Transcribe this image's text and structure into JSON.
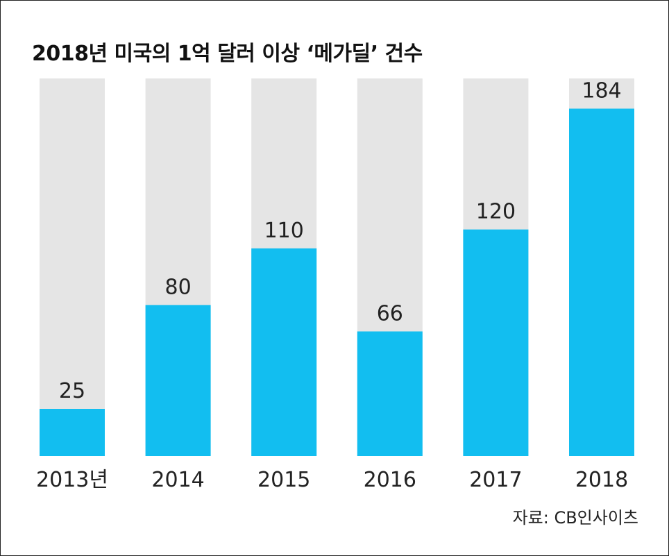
{
  "title": "2018년 미국의 1억 달러 이상 ‘메가딜’ 건수",
  "source": "자료: CB인사이츠",
  "colors": {
    "bar": "#12BEF0",
    "track": "#E5E5E5",
    "text": "#222222"
  },
  "chart_data": {
    "type": "bar",
    "title": "2018년 미국의 1억 달러 이상 ‘메가딜’ 건수",
    "categories": [
      "2013년",
      "2014",
      "2015",
      "2016",
      "2017",
      "2018"
    ],
    "values": [
      25,
      80,
      110,
      66,
      120,
      184
    ],
    "ylim": [
      0,
      200
    ],
    "grid": false,
    "legend": "none"
  }
}
